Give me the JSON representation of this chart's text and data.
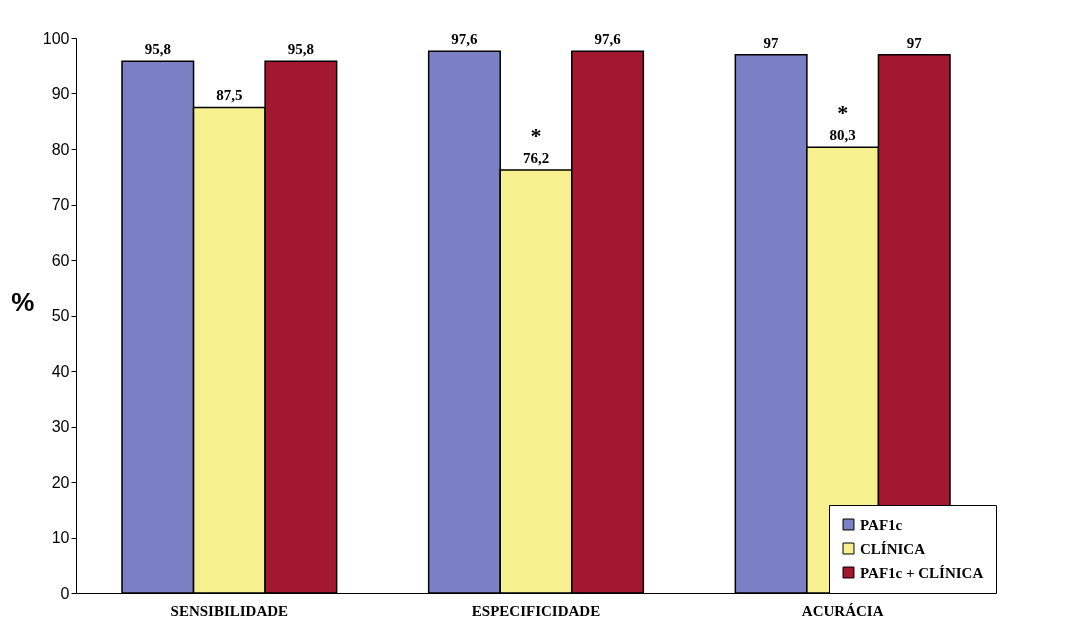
{
  "chart_data": {
    "type": "bar",
    "ylabel": "%",
    "categories": [
      "SENSIBILIDADE",
      "ESPECIFICIDADE",
      "ACURÁCIA"
    ],
    "series": [
      {
        "name": "PAF1c",
        "color": "#7b80c4",
        "values": [
          95.8,
          97.6,
          97
        ],
        "value_labels": [
          "95,8",
          "97,6",
          "97"
        ]
      },
      {
        "name": "CLÍNICA",
        "color": "#f6f08e",
        "values": [
          87.5,
          76.2,
          80.3
        ],
        "value_labels": [
          "87,5",
          "76,2",
          "80,3"
        ]
      },
      {
        "name": "PAF1c + CLÍNICA",
        "color": "#a3172f",
        "values": [
          95.8,
          97.6,
          97
        ],
        "value_labels": [
          "95,8",
          "97,6",
          "97"
        ]
      }
    ],
    "ylim": [
      0,
      100
    ],
    "yticks": [
      0,
      10,
      20,
      30,
      40,
      50,
      60,
      70,
      80,
      90,
      100
    ],
    "grid": false,
    "legend": "bottom right",
    "annotations": [
      {
        "text": "*",
        "x": "ESPECIFICIDADE",
        "y": 76.2
      },
      {
        "text": "*",
        "x": "ACURÁCIA",
        "y": 80.3
      }
    ]
  }
}
